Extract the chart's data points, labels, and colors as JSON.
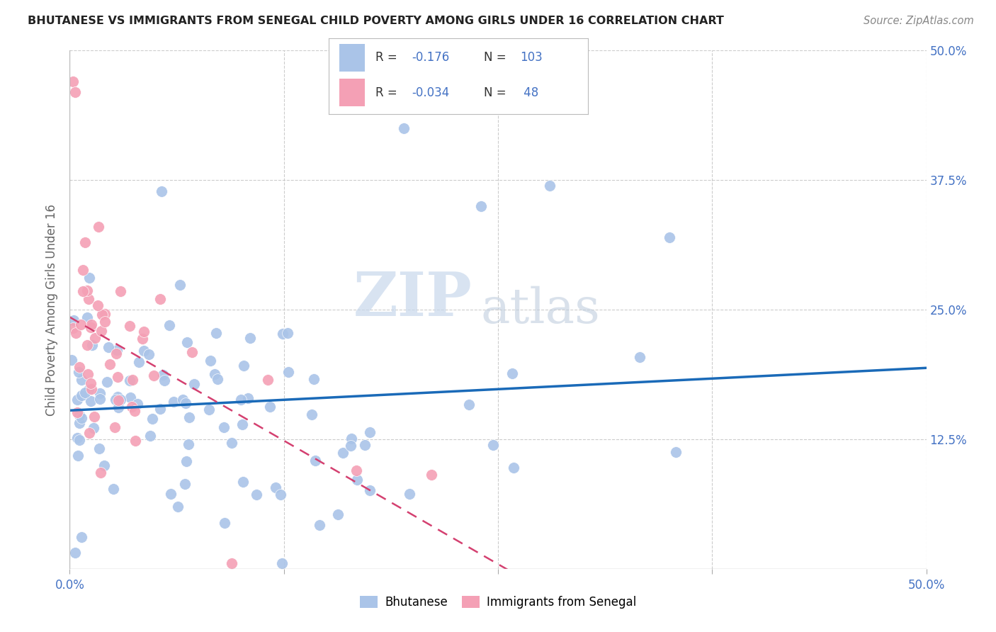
{
  "title": "BHUTANESE VS IMMIGRANTS FROM SENEGAL CHILD POVERTY AMONG GIRLS UNDER 16 CORRELATION CHART",
  "source": "Source: ZipAtlas.com",
  "ylabel": "Child Poverty Among Girls Under 16",
  "xlim": [
    0.0,
    0.5
  ],
  "ylim": [
    0.0,
    0.5
  ],
  "bhutanese_color": "#aac4e8",
  "senegal_color": "#f4a0b5",
  "trend_bhutanese_color": "#1a6ab8",
  "trend_senegal_color": "#d44070",
  "watermark_zip": "#c5d8ee",
  "watermark_atlas": "#c5cfe0",
  "grid_color": "#cccccc",
  "tick_label_color": "#4472c4",
  "ylabel_color": "#666666",
  "title_color": "#222222",
  "source_color": "#888888"
}
